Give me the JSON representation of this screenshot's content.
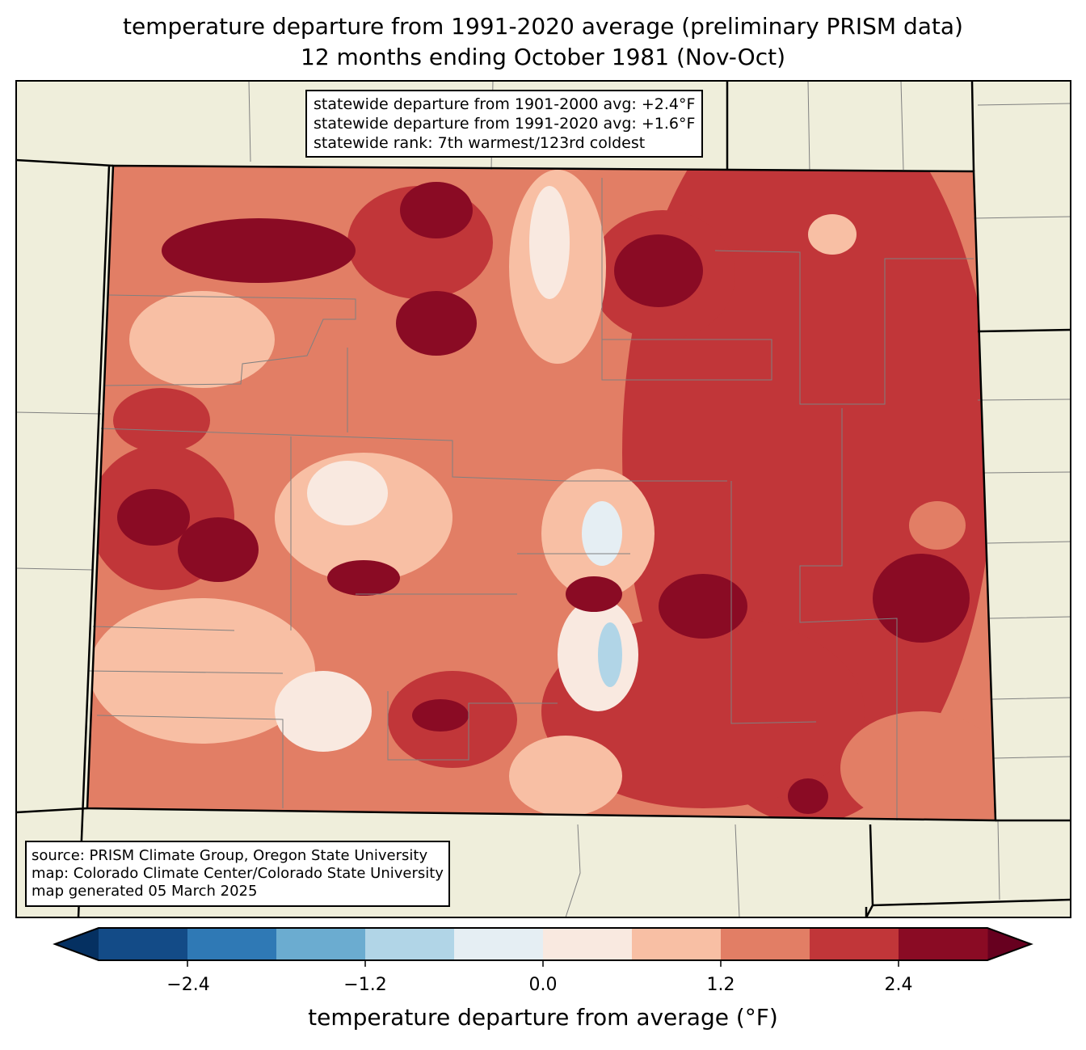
{
  "title": {
    "line1": "temperature departure from 1991-2020 average (preliminary PRISM data)",
    "line2": "12 months ending October 1981 (Nov-Oct)"
  },
  "stats": {
    "line1": "statewide departure from 1901-2000 avg: +2.4°F",
    "line2": "statewide departure from 1991-2020 avg: +1.6°F",
    "line3": "statewide rank: 7th warmest/123rd coldest"
  },
  "source": {
    "line1": "source: PRISM Climate Group, Oregon State University",
    "line2": "map: Colorado Climate Center/Colorado State University",
    "line3": "map generated 05 March 2025"
  },
  "colorbar": {
    "label": "temperature departure from average (°F)",
    "ticks": [
      "−2.4",
      "−1.2",
      "0.0",
      "1.2",
      "2.4"
    ],
    "bounds": [
      -3.0,
      -2.4,
      -1.8,
      -1.2,
      -0.6,
      0.0,
      0.6,
      1.2,
      1.8,
      2.4,
      3.0
    ],
    "colors": [
      "#134b87",
      "#2f79b5",
      "#6bacd0",
      "#b1d5e7",
      "#e5eef3",
      "#f9e9e0",
      "#f8bfa4",
      "#e27e65",
      "#c13639",
      "#8a0b24"
    ],
    "under_color": "#053061",
    "over_color": "#67001f"
  },
  "colors": {
    "land": "#efeedb",
    "border": "#000000",
    "county": "#808080"
  }
}
